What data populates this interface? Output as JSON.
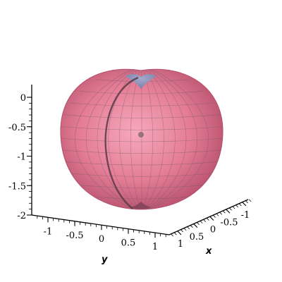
{
  "chart_data": {
    "type": "surface3d",
    "surface": "apple-shaped surface of revolution (cardioid profile)",
    "colors": {
      "surface_center": "#f6a4b8",
      "surface_mid": "#e0768e",
      "surface_edge": "#b9506c",
      "dimple": "#8fa1c6",
      "mesh": "#6a5a6a",
      "curve": "#5a3a48",
      "axes": "#000000",
      "background": "#ffffff"
    },
    "axes": {
      "z": {
        "label": "",
        "ticks": [
          "0",
          "-0.5",
          "-1",
          "-1.5",
          "-2"
        ],
        "range": [
          -2,
          0
        ]
      },
      "y": {
        "label": "y",
        "ticks": [
          "-1",
          "-0.5",
          "0",
          "0.5",
          "1"
        ],
        "range": [
          -1.25,
          1.25
        ]
      },
      "x": {
        "label": "x",
        "ticks": [
          "1",
          "0.5",
          "0",
          "-0.5",
          "-1"
        ],
        "range": [
          -1.25,
          1.25
        ]
      }
    },
    "grid": false,
    "legend": "none"
  }
}
